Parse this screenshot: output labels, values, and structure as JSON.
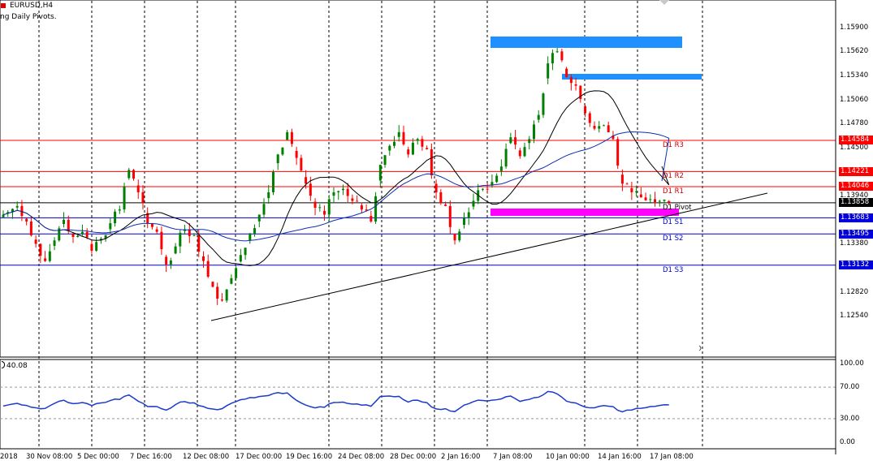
{
  "header": {
    "symbol": "EURUSD,H4",
    "indicator_name": "ng Daily Pivots.",
    "subwindow_value": "40.08"
  },
  "colors": {
    "bull": "#008000",
    "bear": "#ff0000",
    "ma_blue": "#1030b0",
    "ma_black": "#000000",
    "resist": "#ff0000",
    "support": "#0000cc",
    "pivot": "#ff00ff",
    "zone": "#1e90ff",
    "rsi": "#1a3bcc"
  },
  "price_axis": {
    "min": 1.121,
    "max": 1.1618,
    "ticks": [
      "1.15900",
      "1.15620",
      "1.15340",
      "1.15060",
      "1.14780",
      "1.14500",
      "1.13940",
      "1.13660",
      "1.13380",
      "1.12820",
      "1.12540"
    ]
  },
  "pivots": [
    {
      "name": "D1 R3",
      "price": 1.14584,
      "label": "1.14584",
      "kind": "resist"
    },
    {
      "name": "D1 R2",
      "price": 1.14221,
      "label": "1.14221",
      "kind": "resist"
    },
    {
      "name": "D1 R1",
      "price": 1.14046,
      "label": "1.14046",
      "kind": "resist"
    },
    {
      "name": "D1 Pivot",
      "price": 1.13858,
      "label": "1.13858",
      "kind": "pivot"
    },
    {
      "name": "D1 S1",
      "price": 1.13683,
      "label": "1.13683",
      "kind": "support"
    },
    {
      "name": "D1 S2",
      "price": 1.13495,
      "label": "1.13495",
      "kind": "support"
    },
    {
      "name": "D1 S3",
      "price": 1.13132,
      "label": "1.13132",
      "kind": "support"
    }
  ],
  "rsi_axis": {
    "ticks": [
      "100.00",
      "70.00",
      "30.00",
      "0.00"
    ]
  },
  "time_axis": {
    "ticks": [
      "2018",
      "30 Nov 08:00",
      "5 Dec 00:00",
      "7 Dec 16:00",
      "12 Dec 08:00",
      "17 Dec 00:00",
      "19 Dec 16:00",
      "24 Dec 08:00",
      "28 Dec 00:00",
      "2 Jan 16:00",
      "7 Jan 08:00",
      "10 Jan 00:00",
      "14 Jan 16:00",
      "17 Jan 08:00"
    ]
  },
  "chart_data": {
    "type": "candlestick",
    "symbol": "EURUSD",
    "timeframe": "H4",
    "close_approx": [
      1.1375,
      1.1382,
      1.1364,
      1.1338,
      1.1318,
      1.1342,
      1.1366,
      1.1346,
      1.1352,
      1.133,
      1.1344,
      1.1362,
      1.1378,
      1.1424,
      1.1398,
      1.1362,
      1.1352,
      1.1314,
      1.1335,
      1.1355,
      1.1348,
      1.1318,
      1.1288,
      1.1272,
      1.1298,
      1.1325,
      1.135,
      1.1372,
      1.1398,
      1.1442,
      1.1468,
      1.1438,
      1.1408,
      1.138,
      1.1372,
      1.1398,
      1.1402,
      1.1388,
      1.1378,
      1.1364,
      1.143,
      1.1452,
      1.1468,
      1.1442,
      1.146,
      1.1448,
      1.1398,
      1.1382,
      1.1342,
      1.1368,
      1.1388,
      1.1402,
      1.141,
      1.1428,
      1.1462,
      1.144,
      1.146,
      1.1488,
      1.1548,
      1.1562,
      1.1532,
      1.1522,
      1.149,
      1.1472,
      1.1476,
      1.146,
      1.1408,
      1.1398,
      1.1392,
      1.139,
      1.1388,
      1.1386
    ]
  }
}
